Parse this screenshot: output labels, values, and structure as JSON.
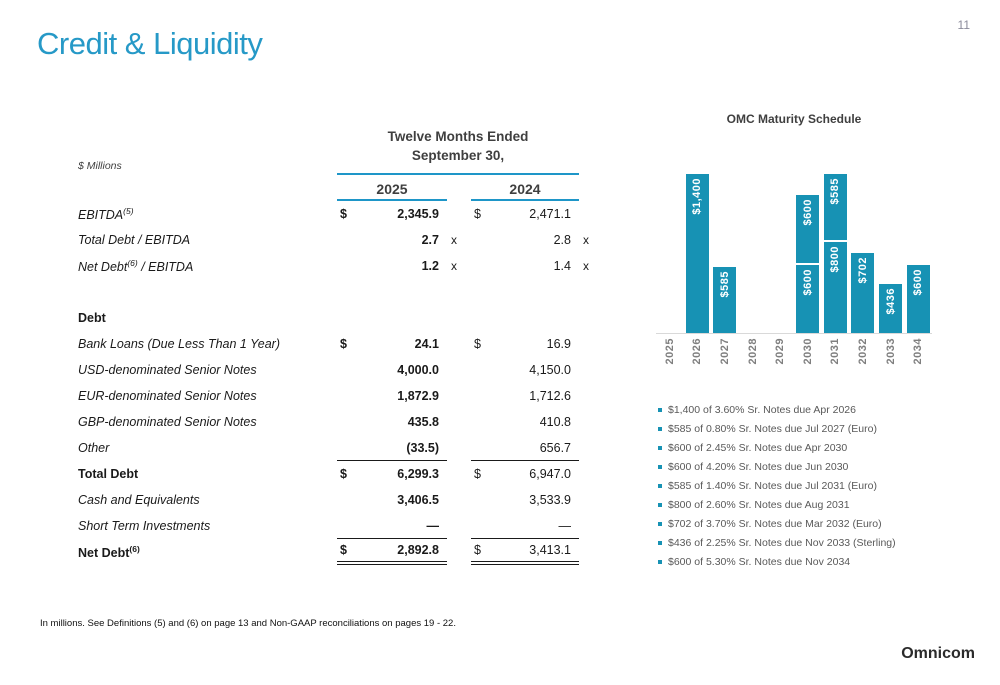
{
  "page": {
    "title": "Credit & Liquidity",
    "number": "11",
    "footnote": "In millions.  See Definitions (5) and (6) on page 13 and Non-GAAP reconciliations on pages 19 - 22.",
    "logo": "Omnicom"
  },
  "colors": {
    "title_blue": "#2699c7",
    "bar_teal": "#1792b4",
    "rule_teal": "#1e96c8",
    "header_gray": "#3f3f3f",
    "legend_gray": "#595959",
    "axis_gray": "#7f7f7f"
  },
  "table": {
    "units_label": "$ Millions",
    "period_line1": "Twelve Months Ended",
    "period_line2": "September 30,",
    "col_headers": [
      "2025",
      "2024"
    ],
    "rows": [
      {
        "label": "EBITDA",
        "sup": "(5)",
        "style": "italic",
        "cur": true,
        "v": [
          "2,345.9",
          "2,471.1"
        ]
      },
      {
        "label": "Total Debt / EBITDA",
        "style": "italic",
        "v": [
          "2.7",
          "2.8"
        ],
        "suffix": "x"
      },
      {
        "label": "Net Debt",
        "sup": "(6)",
        "label_rest": " / EBITDA",
        "style": "italic",
        "v": [
          "1.2",
          "1.4"
        ],
        "suffix": "x"
      },
      {
        "spacer": true
      },
      {
        "label": "Debt",
        "style": "bold"
      },
      {
        "label": "Bank Loans (Due Less Than 1 Year)",
        "style": "italic",
        "cur": true,
        "v": [
          "24.1",
          "16.9"
        ]
      },
      {
        "label": "USD-denominated Senior Notes",
        "style": "italic",
        "v": [
          "4,000.0",
          "4,150.0"
        ]
      },
      {
        "label": "EUR-denominated Senior Notes",
        "style": "italic",
        "v": [
          "1,872.9",
          "1,712.6"
        ]
      },
      {
        "label": "GBP-denominated Senior Notes",
        "style": "italic",
        "v": [
          "435.8",
          "410.8"
        ]
      },
      {
        "label": "Other",
        "style": "italic",
        "v": [
          "(33.5)",
          "656.7"
        ],
        "rule_below": true
      },
      {
        "label": "Total Debt",
        "style": "bold",
        "cur": true,
        "v": [
          "6,299.3",
          "6,947.0"
        ]
      },
      {
        "label": "Cash and Equivalents",
        "style": "italic",
        "v": [
          "3,406.5",
          "3,533.9"
        ]
      },
      {
        "label": "Short Term Investments",
        "style": "italic",
        "v": [
          "—",
          "—"
        ],
        "rule_below": true
      },
      {
        "label": "Net Debt",
        "sup": "(6)",
        "style": "bold",
        "cur": true,
        "v": [
          "2,892.8",
          "3,413.1"
        ],
        "double_rule_below": true
      }
    ]
  },
  "chart_data": {
    "type": "bar",
    "stacked": true,
    "title": "OMC Maturity Schedule",
    "unit": "USD millions",
    "ymax": 1400,
    "bar_color": "#1792b4",
    "x_categories": [
      "2025",
      "2026",
      "2027",
      "2028",
      "2029",
      "2030",
      "2031",
      "2032",
      "2033",
      "2034"
    ],
    "bars": [
      {
        "year": "2025",
        "segments": []
      },
      {
        "year": "2026",
        "segments": [
          {
            "value": 1400,
            "label": "$1,400"
          }
        ]
      },
      {
        "year": "2027",
        "segments": [
          {
            "value": 585,
            "label": "$585"
          }
        ]
      },
      {
        "year": "2028",
        "segments": []
      },
      {
        "year": "2029",
        "segments": []
      },
      {
        "year": "2030",
        "segments": [
          {
            "value": 600,
            "label": "$600"
          },
          {
            "value": 600,
            "label": "$600"
          }
        ]
      },
      {
        "year": "2031",
        "segments": [
          {
            "value": 800,
            "label": "$800"
          },
          {
            "value": 585,
            "label": "$585"
          }
        ]
      },
      {
        "year": "2032",
        "segments": [
          {
            "value": 702,
            "label": "$702"
          }
        ]
      },
      {
        "year": "2033",
        "segments": [
          {
            "value": 436,
            "label": "$436"
          }
        ]
      },
      {
        "year": "2034",
        "segments": [
          {
            "value": 600,
            "label": "$600"
          }
        ]
      }
    ],
    "legend": [
      "$1,400 of 3.60% Sr. Notes due Apr 2026",
      "$585 of 0.80% Sr. Notes due Jul 2027 (Euro)",
      "$600 of 2.45% Sr. Notes due Apr 2030",
      "$600 of 4.20% Sr. Notes due Jun 2030",
      "$585 of 1.40% Sr. Notes due Jul 2031 (Euro)",
      "$800 of 2.60% Sr. Notes due Aug 2031",
      "$702 of 3.70% Sr. Notes due Mar 2032 (Euro)",
      "$436 of 2.25% Sr. Notes due Nov 2033 (Sterling)",
      "$600 of 5.30% Sr. Notes due Nov 2034"
    ]
  }
}
